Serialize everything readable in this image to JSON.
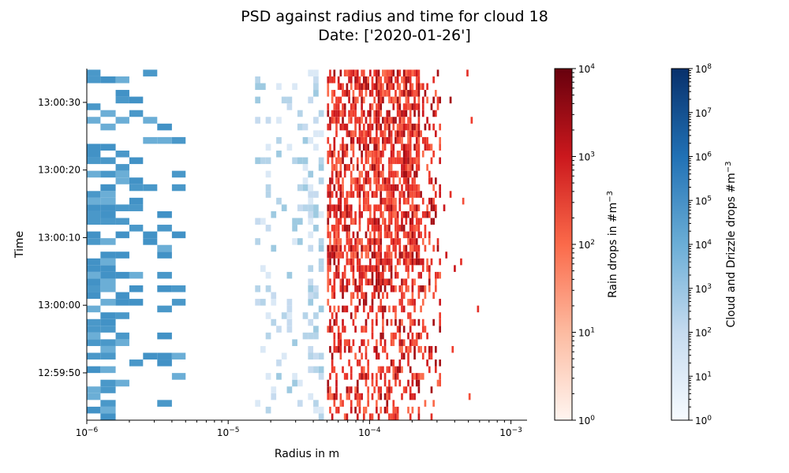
{
  "chart_data": {
    "type": "heatmap",
    "title": "PSD against radius and time for cloud 18",
    "subtitle": "Date: ['2020-01-26']",
    "xlabel": "Radius in m",
    "ylabel": "Time",
    "x_scale": "log",
    "xlim": [
      1e-06,
      0.0013
    ],
    "x_ticks": [
      {
        "value": 1e-06,
        "base": "10",
        "exp": "−6"
      },
      {
        "value": 1e-05,
        "base": "10",
        "exp": "−5"
      },
      {
        "value": 0.0001,
        "base": "10",
        "exp": "−4"
      },
      {
        "value": 0.001,
        "base": "10",
        "exp": "−3"
      }
    ],
    "ylim": [
      "12:59:43",
      "13:00:35"
    ],
    "y_ticks": [
      {
        "value": "12:59:50",
        "label": "12:59:50"
      },
      {
        "value": "13:00:00",
        "label": "13:00:00"
      },
      {
        "value": "13:00:10",
        "label": "13:00:10"
      },
      {
        "value": "13:00:20",
        "label": "13:00:20"
      },
      {
        "value": "13:00:30",
        "label": "13:00:30"
      }
    ],
    "series": [
      {
        "name": "Cloud and Drizzle drops",
        "color_scale": "Blues",
        "colorbar_label": "Cloud and Drizzle drops #m",
        "colorbar_label_exp": "−3",
        "colorbar_scale": "log",
        "colorbar_range": [
          1,
          100000000
        ],
        "colorbar_ticks": [
          {
            "base": "10",
            "exp": "0"
          },
          {
            "base": "10",
            "exp": "1"
          },
          {
            "base": "10",
            "exp": "2"
          },
          {
            "base": "10",
            "exp": "3"
          },
          {
            "base": "10",
            "exp": "4"
          },
          {
            "base": "10",
            "exp": "5"
          },
          {
            "base": "10",
            "exp": "6"
          },
          {
            "base": "10",
            "exp": "7"
          },
          {
            "base": "10",
            "exp": "8"
          }
        ],
        "radius_range_m": [
          1e-06,
          4.8e-05
        ],
        "dense_radius_range_m": [
          1e-06,
          4.5e-06
        ],
        "light_radius_range_m": [
          1.5e-05,
          4.8e-05
        ]
      },
      {
        "name": "Rain drops",
        "color_scale": "Reds",
        "colorbar_label": "Rain drops in #m",
        "colorbar_label_exp": "−3",
        "colorbar_scale": "log",
        "colorbar_range": [
          1,
          10000
        ],
        "colorbar_ticks": [
          {
            "base": "10",
            "exp": "0"
          },
          {
            "base": "10",
            "exp": "1"
          },
          {
            "base": "10",
            "exp": "2"
          },
          {
            "base": "10",
            "exp": "3"
          },
          {
            "base": "10",
            "exp": "4"
          }
        ],
        "radius_range_m": [
          5e-05,
          0.00063
        ]
      }
    ],
    "grid": false
  }
}
